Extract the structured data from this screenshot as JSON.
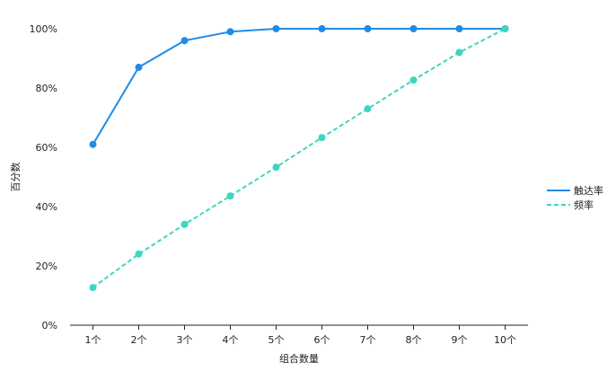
{
  "chart_data": {
    "type": "line",
    "categories": [
      "1个",
      "2个",
      "3个",
      "4个",
      "5个",
      "6个",
      "7个",
      "8个",
      "9个",
      "10个"
    ],
    "xlabel": "组合数量",
    "ylabel": "百分数",
    "ylim": [
      0,
      100
    ],
    "yticks": [
      "0%",
      "20%",
      "40%",
      "60%",
      "80%",
      "100%"
    ],
    "legend_position": "right",
    "grid": false,
    "series": [
      {
        "name": "触达率",
        "color": "#1f8ce6",
        "dashed": false,
        "values": [
          61,
          87,
          96,
          99,
          100,
          100,
          100,
          100,
          100,
          100
        ]
      },
      {
        "name": "频率",
        "color": "#3dd6c0",
        "dashed": true,
        "values": [
          12.7,
          24,
          34,
          43.6,
          53.3,
          63.3,
          73,
          82.7,
          92,
          100
        ]
      }
    ]
  }
}
